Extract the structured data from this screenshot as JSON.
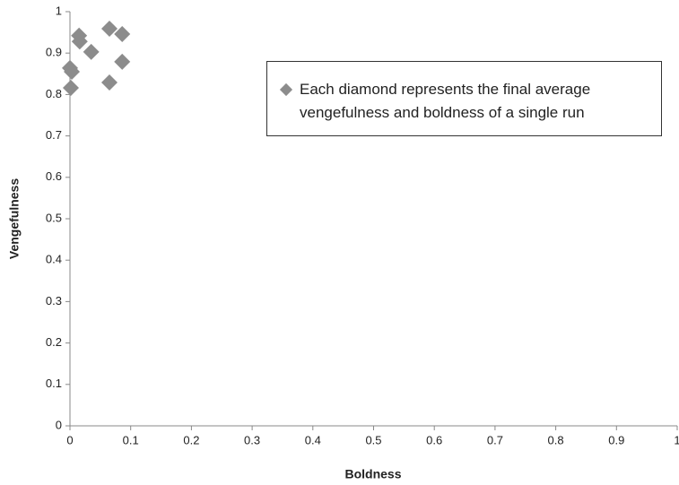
{
  "chart_data": {
    "type": "scatter",
    "xlabel": "Boldness",
    "ylabel": "Vengefulness",
    "xlim": [
      0,
      1
    ],
    "ylim": [
      0,
      1
    ],
    "xticks": [
      0,
      0.1,
      0.2,
      0.3,
      0.4,
      0.5,
      0.6,
      0.7,
      0.8,
      0.9,
      1
    ],
    "yticks": [
      0,
      0.1,
      0.2,
      0.3,
      0.4,
      0.5,
      0.6,
      0.7,
      0.8,
      0.9,
      1
    ],
    "series": [
      {
        "name": "Each diamond represents the final average vengefulness and boldness of a single run",
        "color": "#8c8c8c",
        "x": [
          0.015,
          0.016,
          0.065,
          0.086,
          0.035,
          0.0,
          0.003,
          0.0015,
          0.065,
          0.086
        ],
        "values": [
          0.942,
          0.928,
          0.959,
          0.946,
          0.903,
          0.864,
          0.855,
          0.816,
          0.829,
          0.879
        ]
      }
    ],
    "legend": "upper right"
  }
}
